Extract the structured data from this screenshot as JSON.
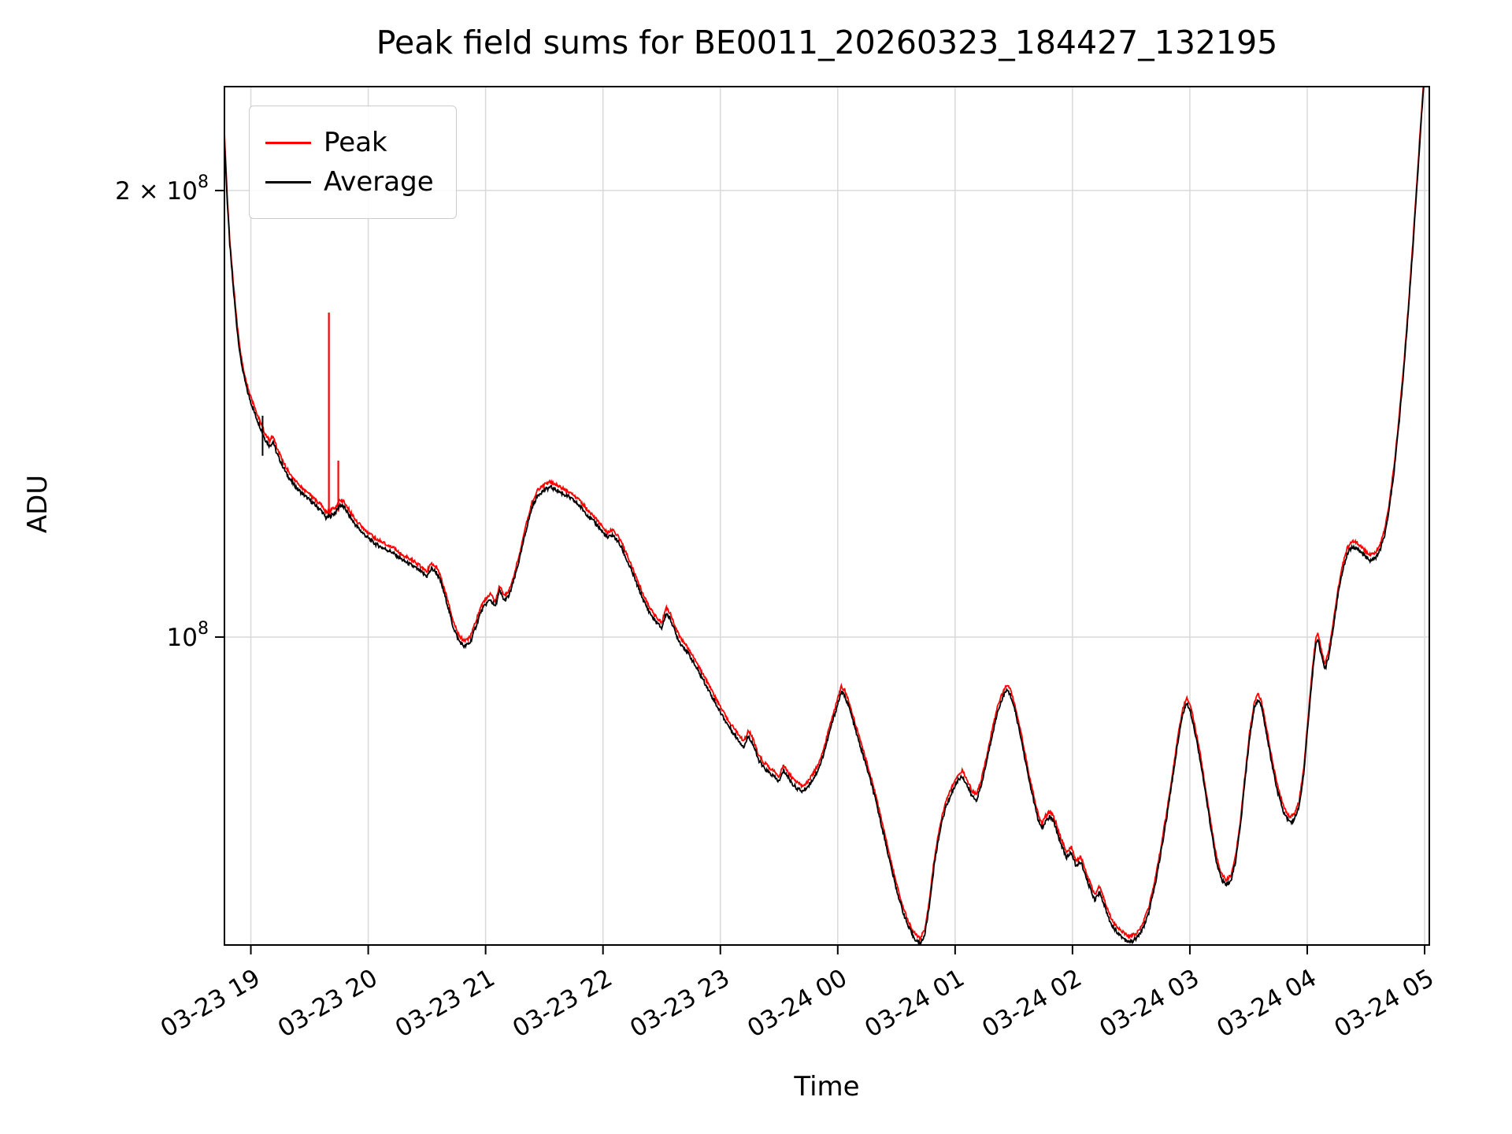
{
  "chart_data": {
    "type": "line",
    "title": "Peak field sums for BE0011_20260323_184427_132195",
    "xlabel": "Time",
    "ylabel": "ADU",
    "yscale": "log",
    "grid": true,
    "legend_position": "upper left",
    "xlim_hours": [
      18.775,
      29.04
    ],
    "ylim": [
      62000000,
      235000000
    ],
    "x_unit": "hours since 2026-03-23 00:00",
    "points_unit": "1e8 ADU",
    "x_ticks": [
      {
        "t": 19,
        "label": "03-23 19"
      },
      {
        "t": 20,
        "label": "03-23 20"
      },
      {
        "t": 21,
        "label": "03-23 21"
      },
      {
        "t": 22,
        "label": "03-23 22"
      },
      {
        "t": 23,
        "label": "03-23 23"
      },
      {
        "t": 24,
        "label": "03-24 00"
      },
      {
        "t": 25,
        "label": "03-24 01"
      },
      {
        "t": 26,
        "label": "03-24 02"
      },
      {
        "t": 27,
        "label": "03-24 03"
      },
      {
        "t": 28,
        "label": "03-24 04"
      },
      {
        "t": 29,
        "label": "03-24 05"
      }
    ],
    "y_ticks": [
      {
        "value": 100000000,
        "base": "10",
        "exp": "8"
      },
      {
        "value": 200000000,
        "base": "2 × 10",
        "exp": "8"
      }
    ],
    "series": [
      {
        "name": "Peak",
        "color": "#ff0000"
      },
      {
        "name": "Average",
        "color": "#000000"
      }
    ],
    "peak_spikes": [
      [
        19.665,
        1.205,
        1.655
      ],
      [
        19.745,
        1.215,
        1.315
      ]
    ],
    "average_spikes": [
      [
        19.1,
        1.325,
        1.41
      ]
    ],
    "points": [
      [
        18.76,
        2.32
      ],
      [
        18.78,
        2.12
      ],
      [
        18.8,
        1.96
      ],
      [
        18.82,
        1.84
      ],
      [
        18.85,
        1.72
      ],
      [
        18.88,
        1.62
      ],
      [
        18.91,
        1.545
      ],
      [
        18.94,
        1.5
      ],
      [
        18.97,
        1.465
      ],
      [
        19.0,
        1.44
      ],
      [
        19.04,
        1.41
      ],
      [
        19.08,
        1.385
      ],
      [
        19.12,
        1.36
      ],
      [
        19.16,
        1.345
      ],
      [
        19.19,
        1.355
      ],
      [
        19.22,
        1.33
      ],
      [
        19.26,
        1.31
      ],
      [
        19.3,
        1.29
      ],
      [
        19.35,
        1.272
      ],
      [
        19.4,
        1.258
      ],
      [
        19.45,
        1.247
      ],
      [
        19.5,
        1.237
      ],
      [
        19.55,
        1.227
      ],
      [
        19.6,
        1.217
      ],
      [
        19.64,
        1.203
      ],
      [
        19.68,
        1.207
      ],
      [
        19.72,
        1.213
      ],
      [
        19.76,
        1.228
      ],
      [
        19.8,
        1.222
      ],
      [
        19.85,
        1.203
      ],
      [
        19.9,
        1.188
      ],
      [
        19.95,
        1.176
      ],
      [
        20.0,
        1.166
      ],
      [
        20.05,
        1.157
      ],
      [
        20.1,
        1.151
      ],
      [
        20.15,
        1.146
      ],
      [
        20.2,
        1.141
      ],
      [
        20.25,
        1.133
      ],
      [
        20.3,
        1.126
      ],
      [
        20.35,
        1.12
      ],
      [
        20.4,
        1.114
      ],
      [
        20.45,
        1.106
      ],
      [
        20.5,
        1.099
      ],
      [
        20.54,
        1.112
      ],
      [
        20.58,
        1.106
      ],
      [
        20.62,
        1.088
      ],
      [
        20.67,
        1.055
      ],
      [
        20.72,
        1.018
      ],
      [
        20.77,
        0.995
      ],
      [
        20.82,
        0.985
      ],
      [
        20.87,
        0.992
      ],
      [
        20.92,
        1.018
      ],
      [
        20.96,
        1.04
      ],
      [
        21.0,
        1.052
      ],
      [
        21.04,
        1.06
      ],
      [
        21.08,
        1.048
      ],
      [
        21.12,
        1.074
      ],
      [
        21.16,
        1.058
      ],
      [
        21.2,
        1.066
      ],
      [
        21.25,
        1.098
      ],
      [
        21.3,
        1.138
      ],
      [
        21.35,
        1.185
      ],
      [
        21.4,
        1.226
      ],
      [
        21.45,
        1.248
      ],
      [
        21.5,
        1.256
      ],
      [
        21.55,
        1.262
      ],
      [
        21.6,
        1.257
      ],
      [
        21.65,
        1.25
      ],
      [
        21.7,
        1.244
      ],
      [
        21.75,
        1.236
      ],
      [
        21.8,
        1.226
      ],
      [
        21.85,
        1.213
      ],
      [
        21.9,
        1.201
      ],
      [
        21.95,
        1.19
      ],
      [
        22.0,
        1.176
      ],
      [
        22.04,
        1.166
      ],
      [
        22.08,
        1.172
      ],
      [
        22.12,
        1.162
      ],
      [
        22.16,
        1.148
      ],
      [
        22.2,
        1.128
      ],
      [
        22.25,
        1.105
      ],
      [
        22.3,
        1.08
      ],
      [
        22.35,
        1.056
      ],
      [
        22.4,
        1.038
      ],
      [
        22.45,
        1.024
      ],
      [
        22.5,
        1.014
      ],
      [
        22.54,
        1.038
      ],
      [
        22.58,
        1.026
      ],
      [
        22.62,
        1.005
      ],
      [
        22.66,
        0.99
      ],
      [
        22.7,
        0.982
      ],
      [
        22.75,
        0.968
      ],
      [
        22.8,
        0.952
      ],
      [
        22.85,
        0.937
      ],
      [
        22.9,
        0.921
      ],
      [
        22.95,
        0.905
      ],
      [
        23.0,
        0.89
      ],
      [
        23.05,
        0.876
      ],
      [
        23.1,
        0.864
      ],
      [
        23.15,
        0.853
      ],
      [
        23.2,
        0.843
      ],
      [
        23.24,
        0.858
      ],
      [
        23.28,
        0.846
      ],
      [
        23.32,
        0.828
      ],
      [
        23.36,
        0.818
      ],
      [
        23.4,
        0.812
      ],
      [
        23.45,
        0.806
      ],
      [
        23.5,
        0.799
      ],
      [
        23.54,
        0.813
      ],
      [
        23.58,
        0.804
      ],
      [
        23.62,
        0.795
      ],
      [
        23.66,
        0.79
      ],
      [
        23.7,
        0.787
      ],
      [
        23.74,
        0.792
      ],
      [
        23.78,
        0.8
      ],
      [
        23.82,
        0.81
      ],
      [
        23.86,
        0.824
      ],
      [
        23.9,
        0.845
      ],
      [
        23.95,
        0.874
      ],
      [
        24.0,
        0.901
      ],
      [
        24.03,
        0.918
      ],
      [
        24.06,
        0.913
      ],
      [
        24.1,
        0.895
      ],
      [
        24.15,
        0.866
      ],
      [
        24.2,
        0.84
      ],
      [
        24.25,
        0.815
      ],
      [
        24.3,
        0.789
      ],
      [
        24.35,
        0.76
      ],
      [
        24.4,
        0.731
      ],
      [
        24.45,
        0.702
      ],
      [
        24.5,
        0.676
      ],
      [
        24.55,
        0.655
      ],
      [
        24.6,
        0.638
      ],
      [
        24.65,
        0.627
      ],
      [
        24.7,
        0.621
      ],
      [
        24.74,
        0.629
      ],
      [
        24.78,
        0.658
      ],
      [
        24.82,
        0.7
      ],
      [
        24.87,
        0.74
      ],
      [
        24.92,
        0.768
      ],
      [
        24.97,
        0.785
      ],
      [
        25.02,
        0.8
      ],
      [
        25.06,
        0.806
      ],
      [
        25.1,
        0.795
      ],
      [
        25.14,
        0.782
      ],
      [
        25.18,
        0.776
      ],
      [
        25.22,
        0.792
      ],
      [
        25.27,
        0.825
      ],
      [
        25.32,
        0.862
      ],
      [
        25.37,
        0.895
      ],
      [
        25.42,
        0.916
      ],
      [
        25.45,
        0.921
      ],
      [
        25.48,
        0.91
      ],
      [
        25.52,
        0.885
      ],
      [
        25.57,
        0.848
      ],
      [
        25.62,
        0.808
      ],
      [
        25.67,
        0.775
      ],
      [
        25.71,
        0.752
      ],
      [
        25.74,
        0.742
      ],
      [
        25.77,
        0.751
      ],
      [
        25.81,
        0.757
      ],
      [
        25.85,
        0.747
      ],
      [
        25.9,
        0.726
      ],
      [
        25.95,
        0.71
      ],
      [
        25.99,
        0.716
      ],
      [
        26.03,
        0.7
      ],
      [
        26.07,
        0.706
      ],
      [
        26.11,
        0.69
      ],
      [
        26.15,
        0.677
      ],
      [
        26.19,
        0.665
      ],
      [
        26.23,
        0.673
      ],
      [
        26.27,
        0.66
      ],
      [
        26.31,
        0.646
      ],
      [
        26.35,
        0.637
      ],
      [
        26.4,
        0.63
      ],
      [
        26.45,
        0.625
      ],
      [
        26.5,
        0.623
      ],
      [
        26.55,
        0.627
      ],
      [
        26.6,
        0.636
      ],
      [
        26.65,
        0.652
      ],
      [
        26.7,
        0.678
      ],
      [
        26.75,
        0.713
      ],
      [
        26.8,
        0.753
      ],
      [
        26.85,
        0.8
      ],
      [
        26.9,
        0.852
      ],
      [
        26.94,
        0.888
      ],
      [
        26.97,
        0.902
      ],
      [
        27.0,
        0.895
      ],
      [
        27.04,
        0.866
      ],
      [
        27.09,
        0.825
      ],
      [
        27.14,
        0.778
      ],
      [
        27.19,
        0.734
      ],
      [
        27.23,
        0.703
      ],
      [
        27.27,
        0.686
      ],
      [
        27.31,
        0.68
      ],
      [
        27.35,
        0.685
      ],
      [
        27.39,
        0.706
      ],
      [
        27.43,
        0.745
      ],
      [
        27.47,
        0.8
      ],
      [
        27.51,
        0.856
      ],
      [
        27.55,
        0.897
      ],
      [
        27.58,
        0.908
      ],
      [
        27.61,
        0.897
      ],
      [
        27.65,
        0.864
      ],
      [
        27.7,
        0.82
      ],
      [
        27.75,
        0.785
      ],
      [
        27.8,
        0.762
      ],
      [
        27.85,
        0.75
      ],
      [
        27.89,
        0.753
      ],
      [
        27.93,
        0.768
      ],
      [
        27.97,
        0.808
      ],
      [
        28.0,
        0.862
      ],
      [
        28.04,
        0.936
      ],
      [
        28.07,
        0.986
      ],
      [
        28.09,
        0.998
      ],
      [
        28.12,
        0.972
      ],
      [
        28.15,
        0.95
      ],
      [
        28.18,
        0.968
      ],
      [
        28.22,
        1.012
      ],
      [
        28.26,
        1.065
      ],
      [
        28.3,
        1.108
      ],
      [
        28.34,
        1.138
      ],
      [
        28.38,
        1.15
      ],
      [
        28.42,
        1.148
      ],
      [
        28.46,
        1.14
      ],
      [
        28.5,
        1.132
      ],
      [
        28.54,
        1.126
      ],
      [
        28.58,
        1.13
      ],
      [
        28.62,
        1.144
      ],
      [
        28.66,
        1.172
      ],
      [
        28.7,
        1.222
      ],
      [
        28.74,
        1.294
      ],
      [
        28.78,
        1.388
      ],
      [
        28.82,
        1.505
      ],
      [
        28.86,
        1.65
      ],
      [
        28.9,
        1.83
      ],
      [
        28.94,
        2.04
      ],
      [
        28.98,
        2.28
      ],
      [
        29.02,
        2.5
      ]
    ]
  },
  "legend": {
    "items": [
      {
        "label": "Peak"
      },
      {
        "label": "Average"
      }
    ]
  }
}
